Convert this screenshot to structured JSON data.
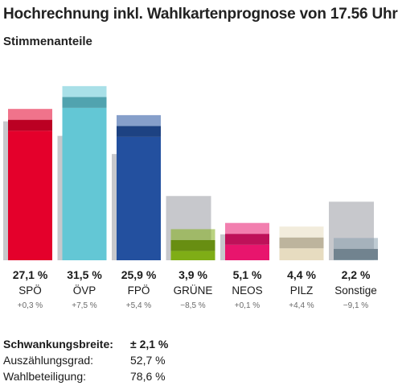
{
  "header": {
    "title": "Hochrechnung inkl. Wahlkartenprognose von 17.56 Uhr",
    "subtitle": "Stimmenanteile"
  },
  "chart_data": {
    "type": "bar",
    "ylim": [
      0,
      37
    ],
    "categories": [
      "SPÖ",
      "ÖVP",
      "FPÖ",
      "GRÜNE",
      "NEOS",
      "PILZ",
      "Sonstige"
    ],
    "series": [
      {
        "values": [
          27.1,
          31.5,
          25.9,
          3.9,
          5.1,
          4.4,
          2.2
        ]
      },
      {
        "values": [
          26.8,
          24.0,
          20.5,
          12.4,
          5.0,
          0.0,
          11.3
        ]
      }
    ],
    "values_label": [
      "27,1 %",
      "31,5 %",
      "25,9 %",
      "3,9 %",
      "5,1 %",
      "4,4 %",
      "2,2 %"
    ],
    "diff_label": [
      "+0,3 %",
      "+7,5 %",
      "+5,4 %",
      "−8,5 %",
      "+0,1 %",
      "+4,4 %",
      "−9,1 %"
    ],
    "bar_colors": [
      "#e4002b",
      "#63c7d5",
      "#23509f",
      "#7fad16",
      "#e8156d",
      "#e7dcc0",
      "#8aa0ae"
    ],
    "prev_color": "#c7c8cc",
    "grid": false,
    "legend": "none"
  },
  "stats": [
    {
      "label": "Schwankungsbreite:",
      "value": "± 2,1 %"
    },
    {
      "label": "Auszählungsgrad:",
      "value": "52,7 %"
    },
    {
      "label": "Wahlbeteiligung:",
      "value": "78,6 %"
    }
  ]
}
